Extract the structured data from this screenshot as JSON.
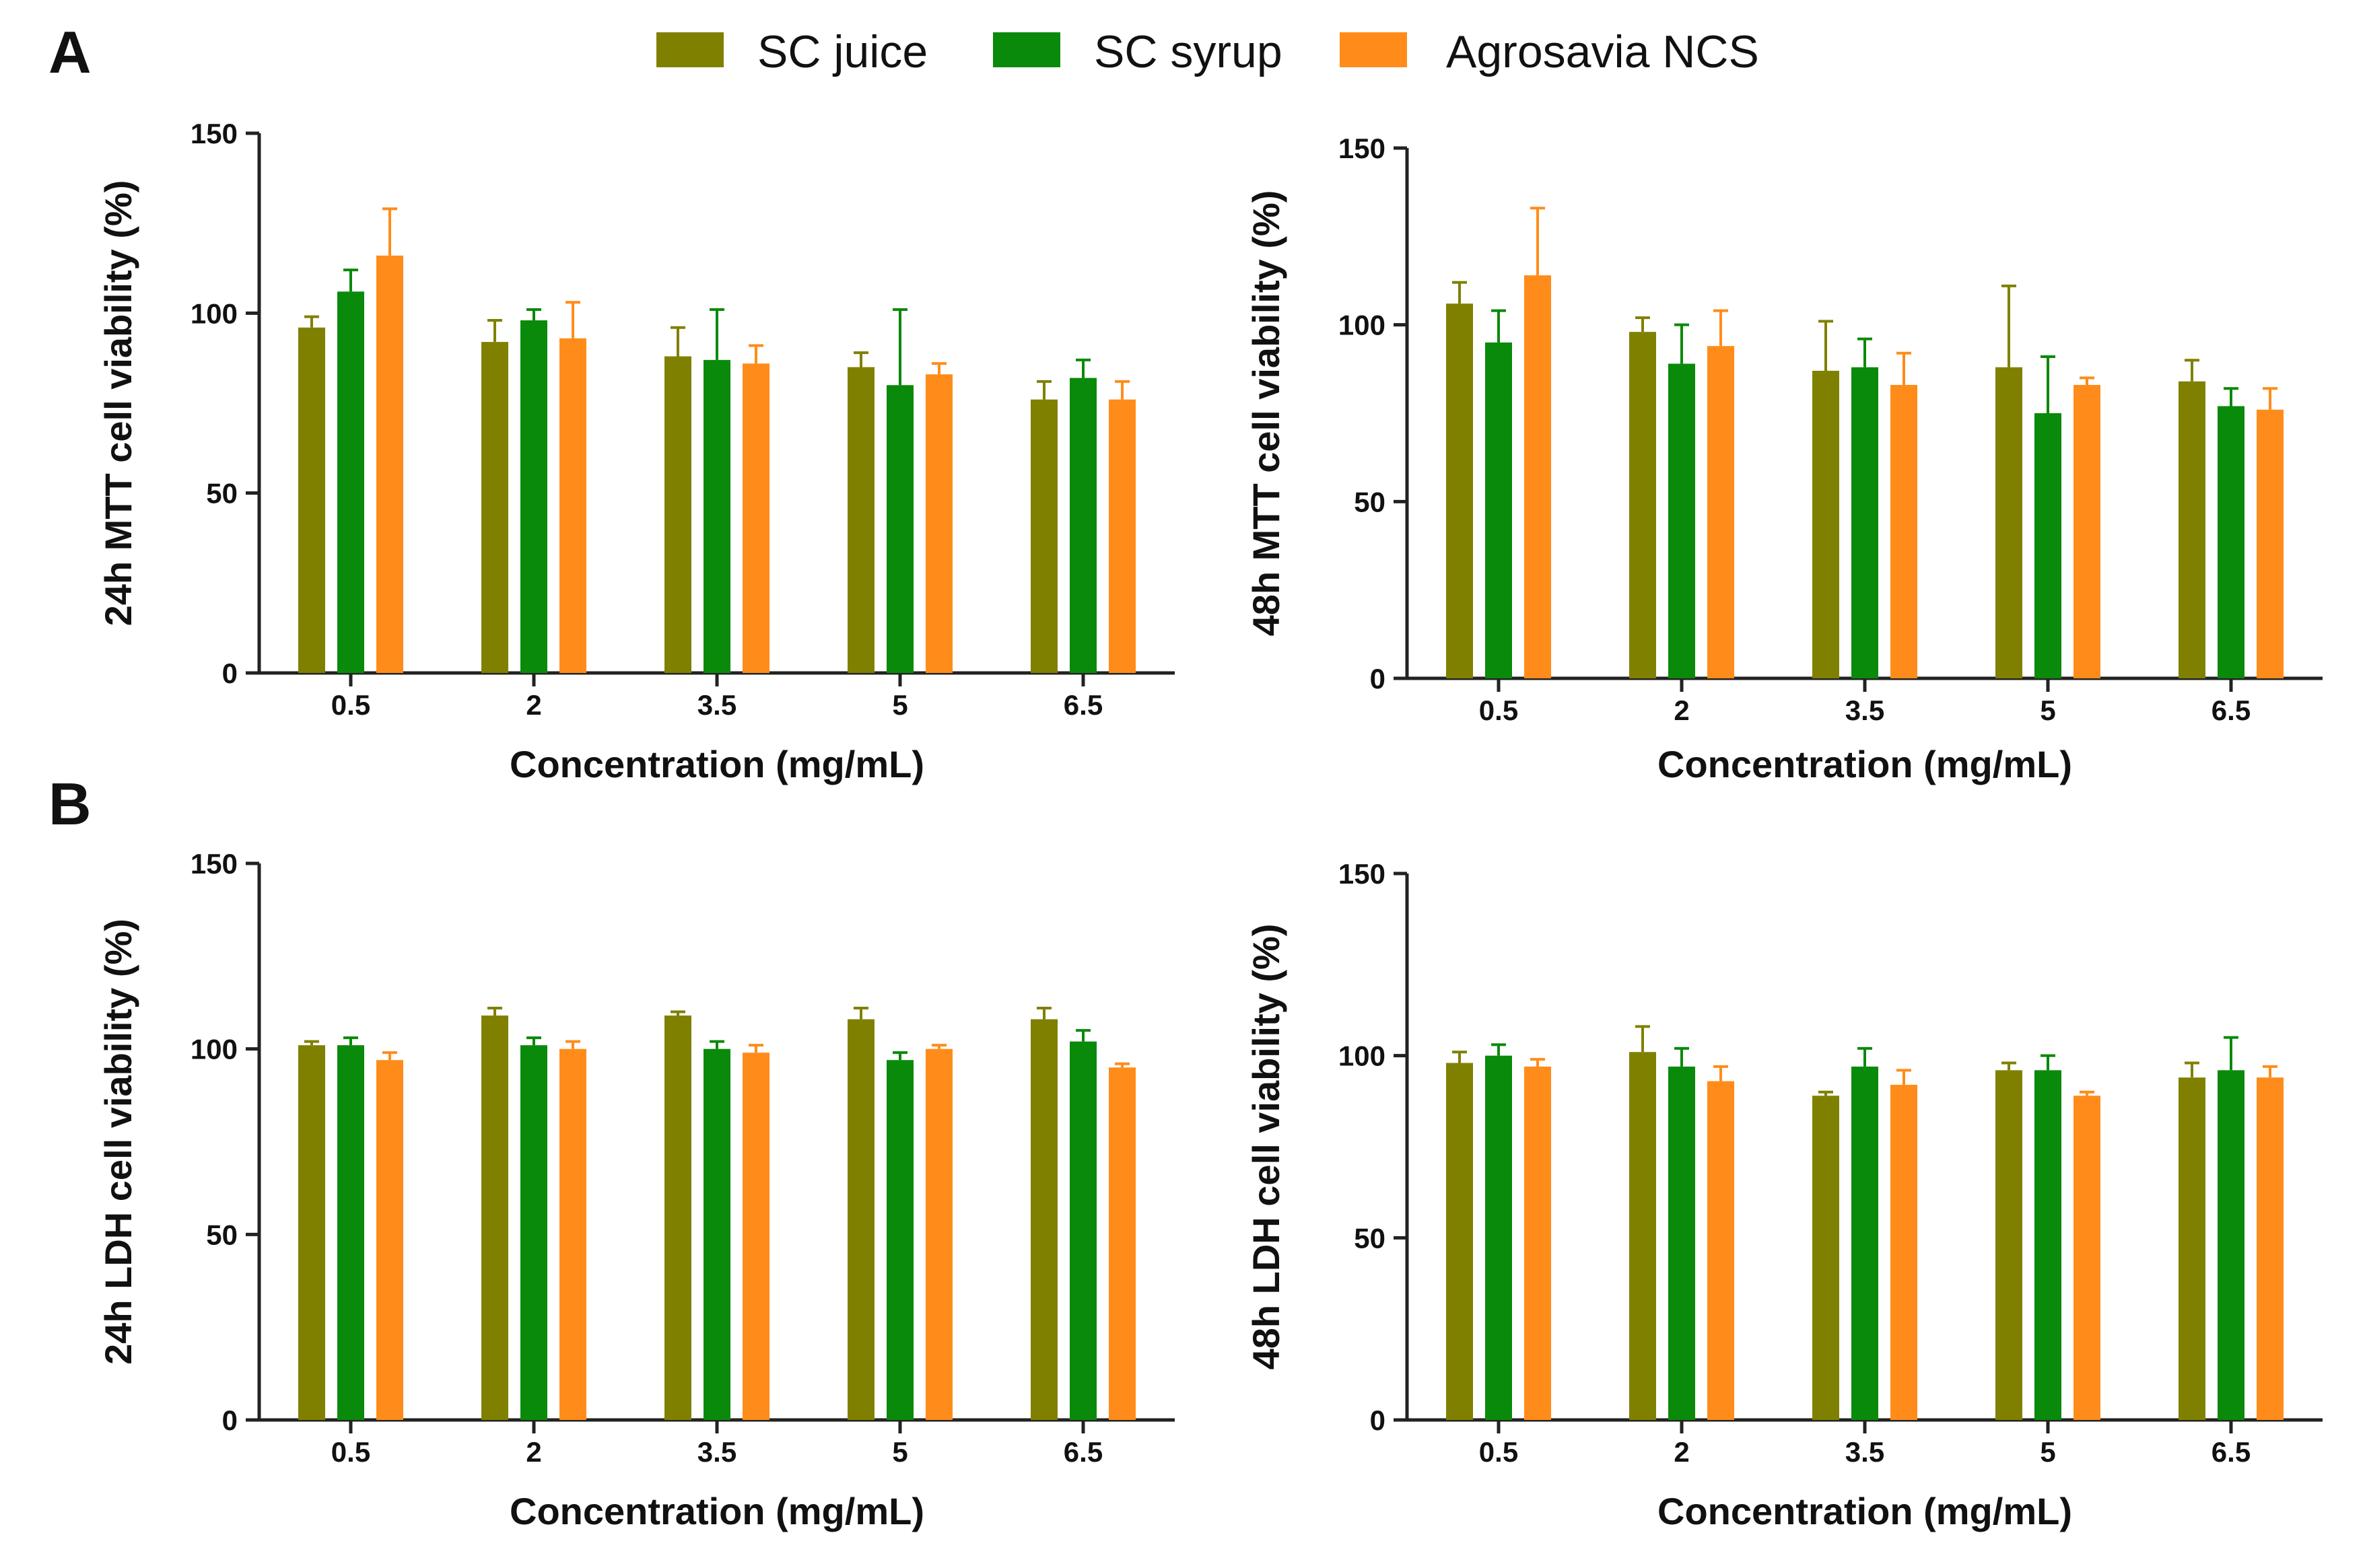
{
  "figure": {
    "panel_labels": [
      "A",
      "B"
    ],
    "legend": [
      {
        "name": "SC juice",
        "color": "#808000"
      },
      {
        "name": "SC syrup",
        "color": "#0a8a0a"
      },
      {
        "name": "Agrosavia NCS",
        "color": "#ff8c1a"
      }
    ]
  },
  "chart_data": [
    {
      "type": "bar",
      "panel": "A",
      "title": "",
      "xlabel": "Concentration (mg/mL)",
      "ylabel": "24h MTT cell viability (%)",
      "categories": [
        "0.5",
        "2",
        "3.5",
        "5",
        "6.5"
      ],
      "ylim": [
        0,
        150
      ],
      "yticks": [
        0,
        50,
        100,
        150
      ],
      "series": [
        {
          "name": "SC juice",
          "values": [
            96,
            92,
            88,
            85,
            76
          ],
          "errors": [
            3,
            6,
            8,
            4,
            5
          ]
        },
        {
          "name": "SC syrup",
          "values": [
            106,
            98,
            87,
            80,
            82
          ],
          "errors": [
            6,
            3,
            14,
            21,
            5
          ]
        },
        {
          "name": "Agrosavia NCS",
          "values": [
            116,
            93,
            86,
            83,
            76
          ],
          "errors": [
            13,
            10,
            5,
            3,
            5
          ]
        }
      ]
    },
    {
      "type": "bar",
      "panel": "A",
      "title": "",
      "xlabel": "Concentration (mg/mL)",
      "ylabel": "48h MTT cell viability (%)",
      "categories": [
        "0.5",
        "2",
        "3.5",
        "5",
        "6.5"
      ],
      "ylim": [
        0,
        150
      ],
      "yticks": [
        0,
        50,
        100,
        150
      ],
      "series": [
        {
          "name": "SC juice",
          "values": [
            106,
            98,
            87,
            88,
            84
          ],
          "errors": [
            6,
            4,
            14,
            23,
            6
          ]
        },
        {
          "name": "SC syrup",
          "values": [
            95,
            89,
            88,
            75,
            77
          ],
          "errors": [
            9,
            11,
            8,
            16,
            5
          ]
        },
        {
          "name": "Agrosavia NCS",
          "values": [
            114,
            94,
            83,
            83,
            76
          ],
          "errors": [
            19,
            10,
            9,
            2,
            6
          ]
        }
      ]
    },
    {
      "type": "bar",
      "panel": "B",
      "title": "",
      "xlabel": "Concentration (mg/mL)",
      "ylabel": "24h LDH cell viability (%)",
      "categories": [
        "0.5",
        "2",
        "3.5",
        "5",
        "6.5"
      ],
      "ylim": [
        0,
        150
      ],
      "yticks": [
        0,
        50,
        100,
        150
      ],
      "series": [
        {
          "name": "SC juice",
          "values": [
            101,
            109,
            109,
            108,
            108
          ],
          "errors": [
            1,
            2,
            1,
            3,
            3
          ]
        },
        {
          "name": "SC syrup",
          "values": [
            101,
            101,
            100,
            97,
            102
          ],
          "errors": [
            2,
            2,
            2,
            2,
            3
          ]
        },
        {
          "name": "Agrosavia NCS",
          "values": [
            97,
            100,
            99,
            100,
            95
          ],
          "errors": [
            2,
            2,
            2,
            1,
            1
          ]
        }
      ]
    },
    {
      "type": "bar",
      "panel": "B",
      "title": "",
      "xlabel": "Concentration (mg/mL)",
      "ylabel": "48h LDH cell viability (%)",
      "categories": [
        "0.5",
        "2",
        "3.5",
        "5",
        "6.5"
      ],
      "ylim": [
        0,
        150
      ],
      "yticks": [
        0,
        50,
        100,
        150
      ],
      "series": [
        {
          "name": "SC juice",
          "values": [
            98,
            101,
            89,
            96,
            94
          ],
          "errors": [
            3,
            7,
            1,
            2,
            4
          ]
        },
        {
          "name": "SC syrup",
          "values": [
            100,
            97,
            97,
            96,
            96
          ],
          "errors": [
            3,
            5,
            5,
            4,
            9
          ]
        },
        {
          "name": "Agrosavia NCS",
          "values": [
            97,
            93,
            92,
            89,
            94
          ],
          "errors": [
            2,
            4,
            4,
            1,
            3
          ]
        }
      ]
    }
  ]
}
